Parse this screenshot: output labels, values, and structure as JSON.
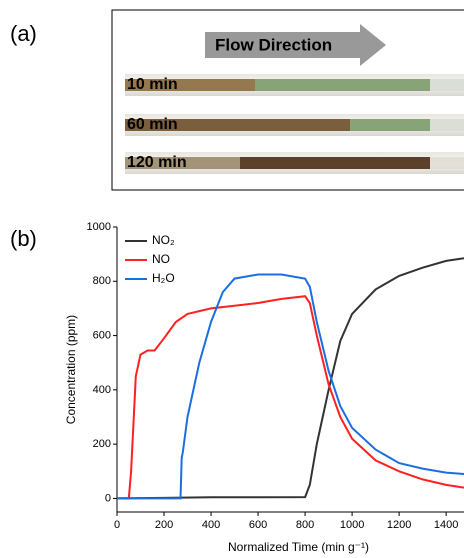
{
  "panel_labels": [
    "(a)",
    "(b)"
  ],
  "photo": {
    "arrow_label": "Flow Direction",
    "tubes": [
      "10 min",
      "60 min",
      "120 min"
    ]
  },
  "chart_data": {
    "type": "line",
    "xlabel": "Normalized Time (min g⁻¹)",
    "ylabel": "Concentration (ppm)",
    "xlim": [
      0,
      1476
    ],
    "ylim": [
      -50,
      1000
    ],
    "xticks": [
      0,
      200,
      400,
      600,
      800,
      1000,
      1200,
      1400
    ],
    "yticks": [
      0,
      200,
      400,
      600,
      800,
      1000
    ],
    "legend": "upper left",
    "series": [
      {
        "name": "NO₂",
        "color": "#333333",
        "x": [
          0,
          200,
          400,
          600,
          800,
          820,
          850,
          900,
          950,
          1000,
          1100,
          1200,
          1300,
          1400,
          1476
        ],
        "values": [
          0,
          2,
          4,
          4,
          5,
          50,
          200,
          400,
          580,
          680,
          770,
          820,
          850,
          875,
          885
        ]
      },
      {
        "name": "NO",
        "color": "#ff2020",
        "x": [
          0,
          50,
          60,
          80,
          100,
          130,
          160,
          200,
          250,
          300,
          400,
          500,
          600,
          700,
          800,
          820,
          850,
          900,
          950,
          1000,
          1100,
          1200,
          1300,
          1400,
          1476
        ],
        "values": [
          0,
          0,
          100,
          450,
          530,
          545,
          545,
          590,
          650,
          680,
          700,
          710,
          720,
          735,
          745,
          720,
          600,
          420,
          300,
          220,
          140,
          100,
          70,
          50,
          40
        ]
      },
      {
        "name": "H₂O",
        "color": "#1a6fe0",
        "x": [
          0,
          270,
          275,
          280,
          300,
          350,
          400,
          450,
          500,
          600,
          700,
          800,
          820,
          850,
          900,
          950,
          1000,
          1100,
          1200,
          1300,
          1400,
          1476
        ],
        "values": [
          0,
          0,
          150,
          170,
          300,
          500,
          650,
          760,
          810,
          825,
          825,
          810,
          780,
          650,
          470,
          340,
          260,
          180,
          130,
          110,
          95,
          90
        ]
      }
    ]
  }
}
